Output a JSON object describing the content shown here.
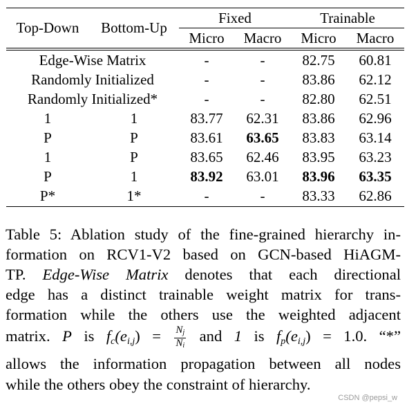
{
  "table": {
    "col_topdown": "Top-Down",
    "col_bottomup": "Bottom-Up",
    "group_fixed": "Fixed",
    "group_trainable": "Trainable",
    "sub_micro": "Micro",
    "sub_macro": "Macro",
    "rows": [
      {
        "label": "Edge-Wise Matrix",
        "fixed_micro": "-",
        "fixed_macro": "-",
        "train_micro": "82.75",
        "train_macro": "60.81"
      },
      {
        "label": "Randomly Initialized",
        "fixed_micro": "-",
        "fixed_macro": "-",
        "train_micro": "83.86",
        "train_macro": "62.12"
      },
      {
        "label": "Randomly Initialized*",
        "fixed_micro": "-",
        "fixed_macro": "-",
        "train_micro": "82.80",
        "train_macro": "62.51"
      },
      {
        "td": "1",
        "bu": "1",
        "fixed_micro": "83.77",
        "fixed_macro": "62.31",
        "train_micro": "83.86",
        "train_macro": "62.96"
      },
      {
        "td": "P",
        "bu": "P",
        "fixed_micro": "83.61",
        "fixed_macro": "63.65",
        "train_micro": "83.83",
        "train_macro": "63.14"
      },
      {
        "td": "1",
        "bu": "P",
        "fixed_micro": "83.65",
        "fixed_macro": "62.46",
        "train_micro": "83.95",
        "train_macro": "63.23"
      },
      {
        "td": "P",
        "bu": "1",
        "fixed_micro": "83.92",
        "fixed_macro": "63.01",
        "train_micro": "83.96",
        "train_macro": "63.35"
      },
      {
        "td": "P*",
        "bu": "1*",
        "fixed_micro": "-",
        "fixed_macro": "-",
        "train_micro": "83.33",
        "train_macro": "62.86"
      }
    ],
    "bold_cells": [
      "r4.fixed_macro",
      "r6.fixed_micro",
      "r6.train_micro",
      "r6.train_macro"
    ]
  },
  "caption": {
    "l1": "Table 5: Ablation study of the fine-grained hierarchy in-",
    "l2": "formation on RCV1-V2 based on GCN-based HiAGM-",
    "l3_a": "TP.",
    "l3_b": "Edge-Wise Matrix",
    "l3_c": "denotes that each directional",
    "l4": "edge has a distinct trainable weight matrix for trans-",
    "l5": "formation while the others use the weighted adjacent",
    "l6_a": "matrix.",
    "l6_p": "P",
    "l6_is1": "is",
    "l6_f": "f",
    "l6_c": "c",
    "l6_e": "(e",
    "l6_ij": "i,j",
    "l6_eq": ") =",
    "frac_num": "N",
    "frac_num_sub": "j",
    "frac_den": "N",
    "frac_den_sub": "i",
    "l6_and": "and",
    "l6_one": "1",
    "l6_is2": "is",
    "l6_f2": "f",
    "l6_p2": "p",
    "l6_e2": "(e",
    "l6_ij2": "i,j",
    "l6_eq2": ") = 1.0. “*”",
    "l7": "allows the information propagation between all nodes",
    "l8": "while the others obey the constraint of hierarchy."
  },
  "watermark": "CSDN @pepsi_w"
}
